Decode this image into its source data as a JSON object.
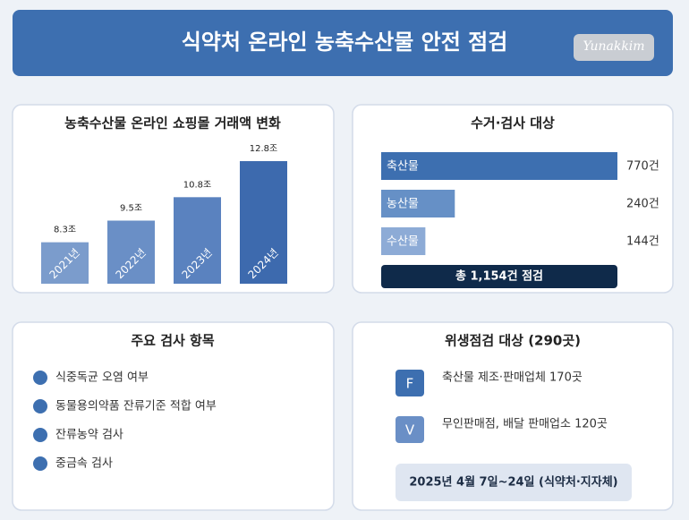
{
  "header": {
    "title": "식약처 온라인 농축수산물 안전 점검",
    "logo": "Yunakkim"
  },
  "chart_data": [
    {
      "type": "bar",
      "title": "농축수산물 온라인 쇼핑몰 거래액 변화",
      "categories": [
        "2021년",
        "2022년",
        "2023년",
        "2024년"
      ],
      "values": [
        8.3,
        9.5,
        10.8,
        12.8
      ],
      "value_labels": [
        "8.3조",
        "9.5조",
        "10.8조",
        "12.8조"
      ],
      "colors": [
        "#7b9ccc",
        "#6a8fc6",
        "#5a82bf",
        "#3d6aae"
      ],
      "ylim": [
        6,
        13
      ]
    },
    {
      "type": "hbar",
      "title": "수거·검사 대상",
      "categories": [
        "축산물",
        "농산물",
        "수산물"
      ],
      "values": [
        770,
        240,
        144
      ],
      "value_labels": [
        "770건",
        "240건",
        "144건"
      ],
      "colors": [
        "#3d6fb0",
        "#6690c6",
        "#8dabd6"
      ],
      "xlim": [
        0,
        770
      ],
      "total": "총 1,154건 점검"
    }
  ],
  "inspection": {
    "title": "주요 검사 항목",
    "items": [
      "식중독균 오염 여부",
      "동물용의약품 잔류기준 적합 여부",
      "잔류농약 검사",
      "중금속 검사"
    ]
  },
  "hygiene": {
    "title": "위생점검 대상 (290곳)",
    "items": [
      {
        "icon": "F",
        "text": "축산물 제조·판매업체 170곳"
      },
      {
        "icon": "V",
        "text": "무인판매점, 배달 판매업소 120곳"
      }
    ],
    "period": "2025년 4월 7일~24일 (식약처·지자체)"
  }
}
